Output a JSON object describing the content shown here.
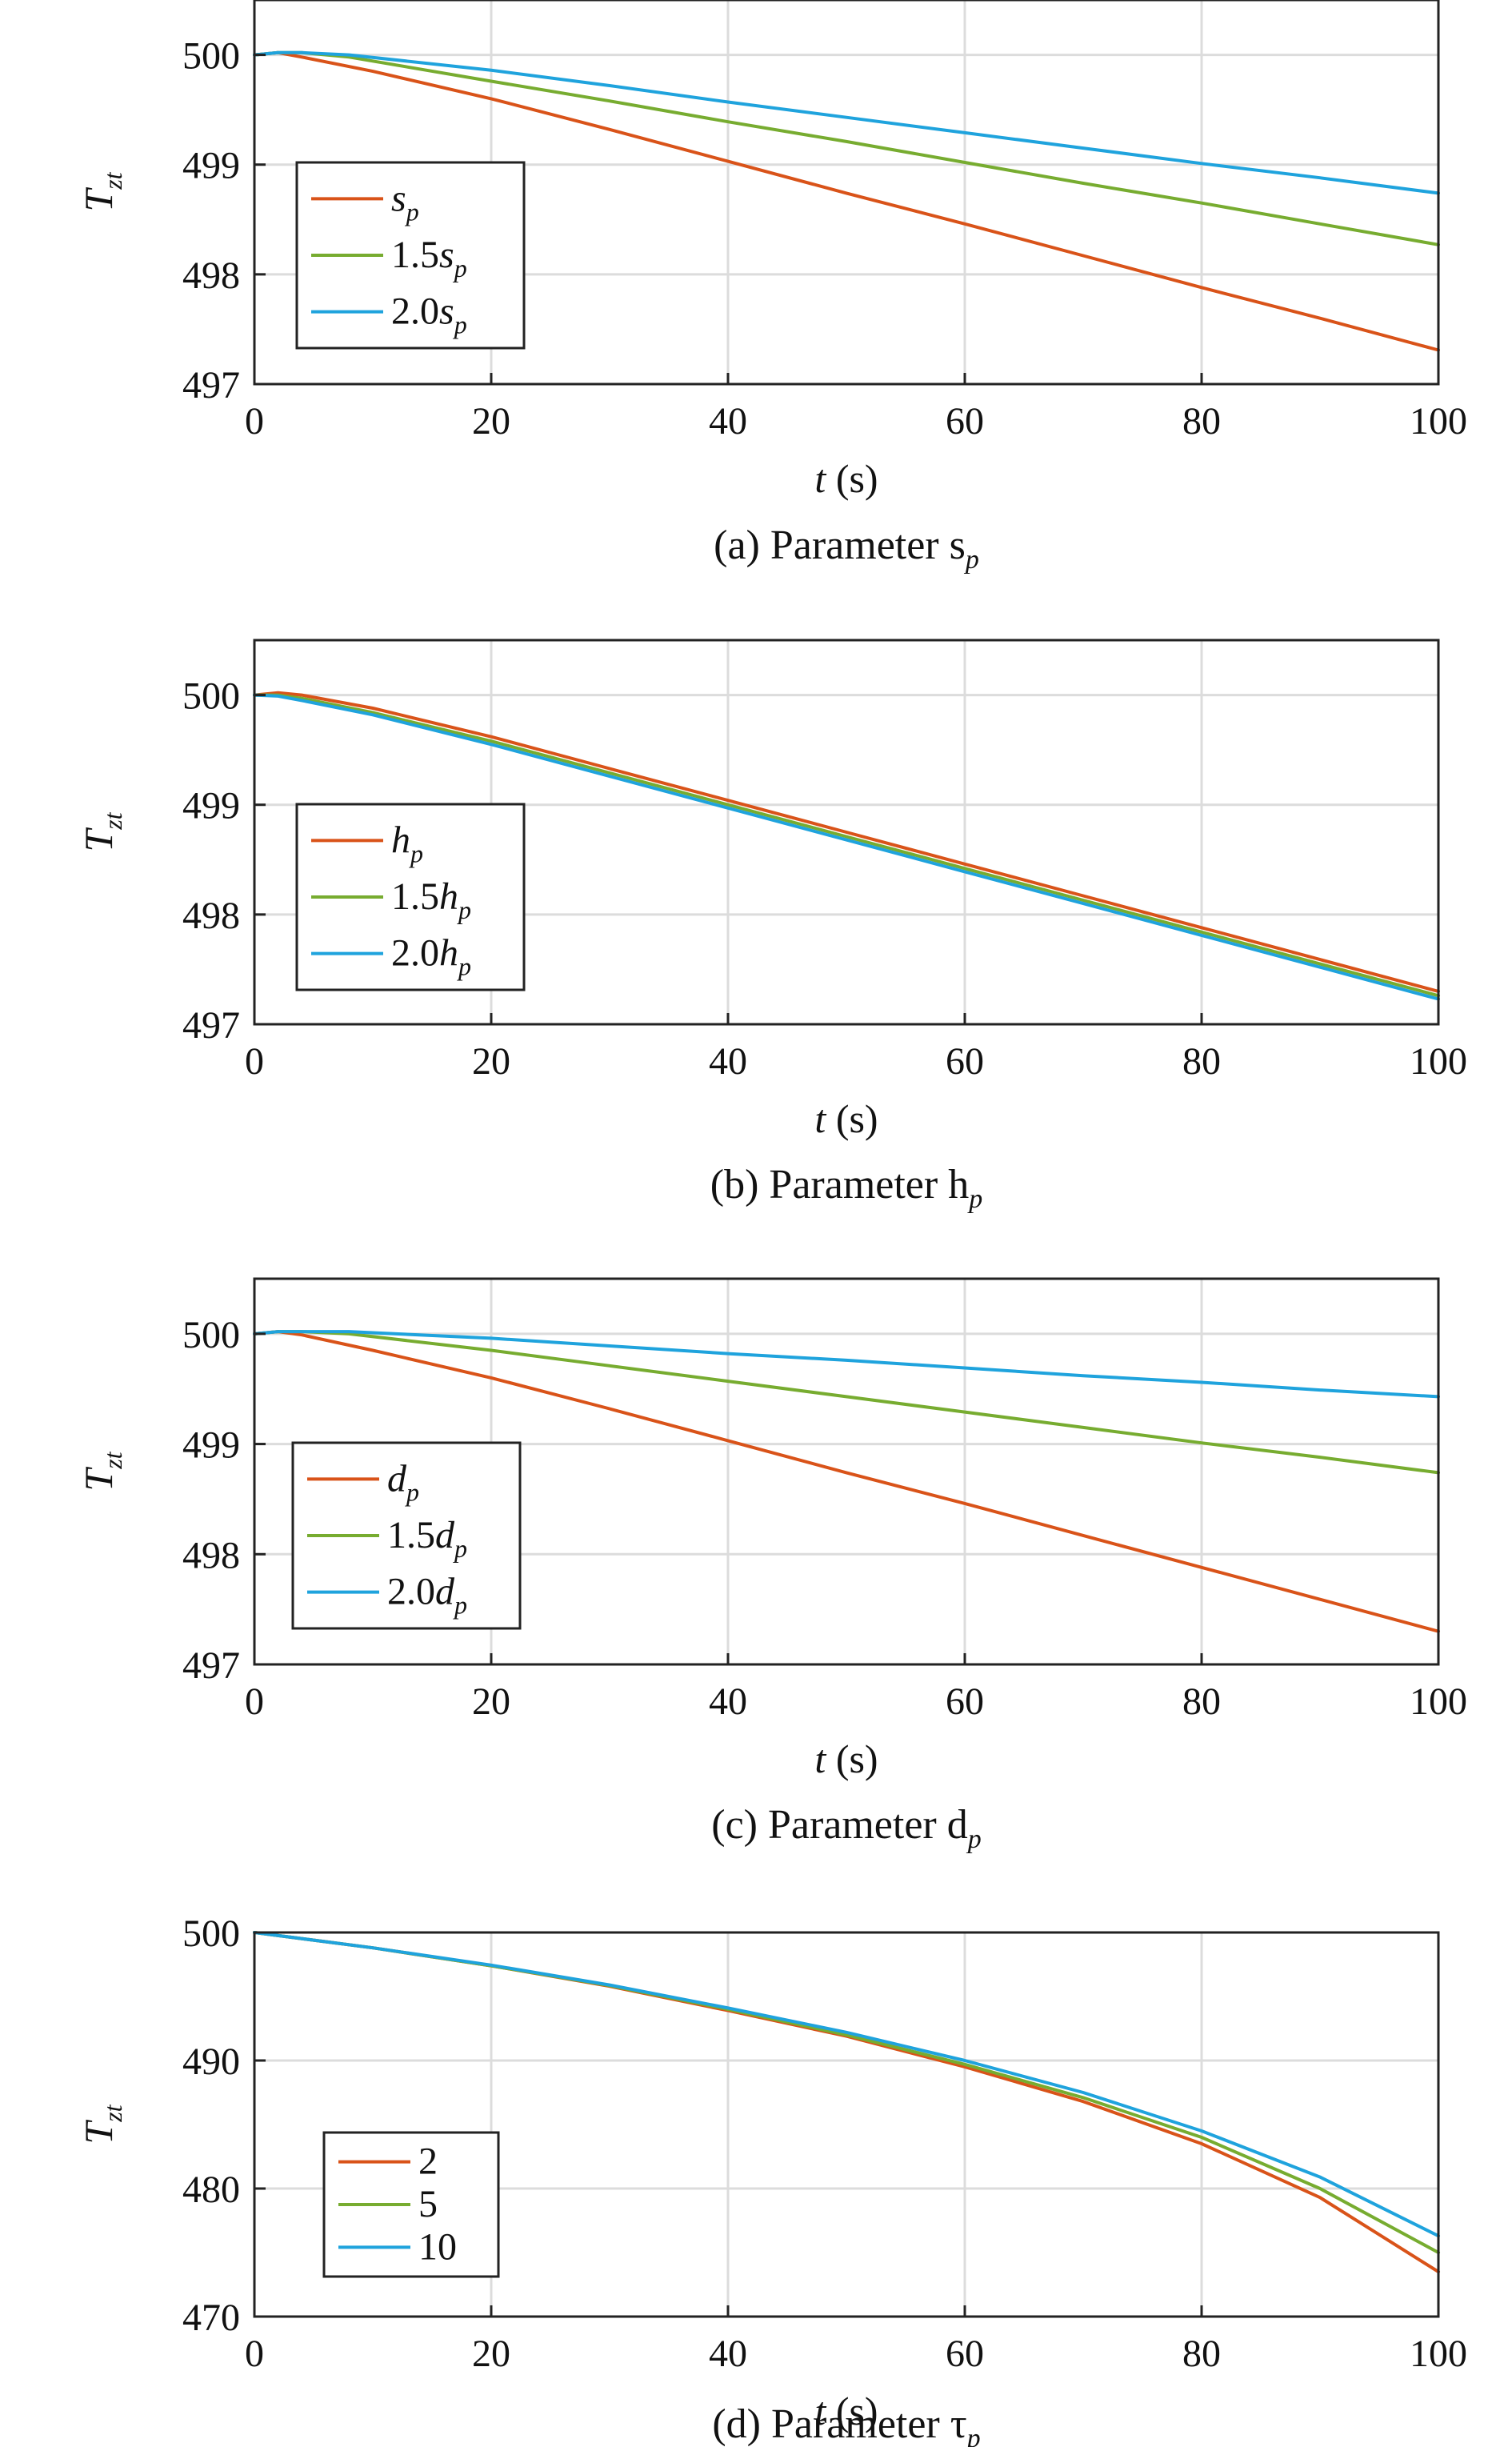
{
  "chart_data": [
    {
      "type": "line",
      "caption": "(a) Parameter s",
      "caption_sub": "p",
      "xlabel_var": "t",
      "xlabel_unit": "(s)",
      "ylabel_main": "T",
      "ylabel_sub": "zt",
      "xlim": [
        0,
        100
      ],
      "ylim": [
        497,
        500.5
      ],
      "xticks": [
        0,
        20,
        40,
        60,
        80,
        100
      ],
      "yticks": [
        497,
        498,
        499,
        500
      ],
      "grid": true,
      "legend_position": "center-left",
      "series": [
        {
          "name": "s",
          "name_prefix": "",
          "name_sub": "p",
          "color": "#D95319",
          "x": [
            0,
            2,
            4,
            10,
            20,
            30,
            40,
            50,
            60,
            70,
            80,
            90,
            100
          ],
          "y": [
            500.0,
            500.02,
            499.98,
            499.85,
            499.6,
            499.32,
            499.03,
            498.74,
            498.46,
            498.17,
            497.88,
            497.6,
            497.31
          ]
        },
        {
          "name": "1.5s",
          "name_prefix": "1.5",
          "name_sub": "p",
          "color": "#77AC30",
          "x": [
            0,
            2,
            4,
            8,
            20,
            30,
            40,
            50,
            60,
            70,
            80,
            90,
            100
          ],
          "y": [
            500.0,
            500.02,
            500.02,
            499.98,
            499.76,
            499.58,
            499.39,
            499.21,
            499.02,
            498.83,
            498.65,
            498.46,
            498.27
          ]
        },
        {
          "name": "2.0s",
          "name_prefix": "2.0",
          "name_sub": "p",
          "color": "#1FA3DD",
          "x": [
            0,
            2,
            4,
            8,
            20,
            30,
            40,
            50,
            60,
            70,
            80,
            90,
            100
          ],
          "y": [
            500.0,
            500.02,
            500.02,
            500.0,
            499.86,
            499.72,
            499.57,
            499.43,
            499.29,
            499.15,
            499.01,
            498.88,
            498.74
          ]
        }
      ]
    },
    {
      "type": "line",
      "caption": "(b) Parameter h",
      "caption_sub": "p",
      "xlabel_var": "t",
      "xlabel_unit": "(s)",
      "ylabel_main": "T",
      "ylabel_sub": "zt",
      "xlim": [
        0,
        100
      ],
      "ylim": [
        497,
        500.5
      ],
      "xticks": [
        0,
        20,
        40,
        60,
        80,
        100
      ],
      "yticks": [
        497,
        498,
        499,
        500
      ],
      "grid": true,
      "legend_position": "center-left",
      "series": [
        {
          "name": "h",
          "name_prefix": "",
          "name_sub": "p",
          "color": "#D95319",
          "x": [
            0,
            2,
            4,
            10,
            20,
            30,
            40,
            50,
            60,
            70,
            80,
            90,
            100
          ],
          "y": [
            500.0,
            500.02,
            500.0,
            499.88,
            499.62,
            499.33,
            499.04,
            498.75,
            498.46,
            498.17,
            497.88,
            497.59,
            497.3
          ]
        },
        {
          "name": "1.5h",
          "name_prefix": "1.5",
          "name_sub": "p",
          "color": "#77AC30",
          "x": [
            0,
            2,
            4,
            10,
            20,
            30,
            40,
            50,
            60,
            70,
            80,
            90,
            100
          ],
          "y": [
            500.0,
            500.0,
            499.97,
            499.84,
            499.58,
            499.29,
            499.0,
            498.71,
            498.42,
            498.13,
            497.84,
            497.55,
            497.26
          ]
        },
        {
          "name": "2.0h",
          "name_prefix": "2.0",
          "name_sub": "p",
          "color": "#1FA3DD",
          "x": [
            0,
            2,
            4,
            10,
            20,
            30,
            40,
            50,
            60,
            70,
            80,
            90,
            100
          ],
          "y": [
            500.0,
            499.99,
            499.95,
            499.82,
            499.55,
            499.26,
            498.97,
            498.68,
            498.39,
            498.1,
            497.81,
            497.52,
            497.23
          ]
        }
      ]
    },
    {
      "type": "line",
      "caption": "(c) Parameter d",
      "caption_sub": "p",
      "xlabel_var": "t",
      "xlabel_unit": "(s)",
      "ylabel_main": "T",
      "ylabel_sub": "zt",
      "xlim": [
        0,
        100
      ],
      "ylim": [
        497,
        500.5
      ],
      "xticks": [
        0,
        20,
        40,
        60,
        80,
        100
      ],
      "yticks": [
        497,
        498,
        499,
        500
      ],
      "grid": true,
      "legend_position": "center-left",
      "series": [
        {
          "name": "d",
          "name_prefix": "",
          "name_sub": "p",
          "color": "#D95319",
          "x": [
            0,
            2,
            4,
            10,
            20,
            30,
            40,
            50,
            60,
            70,
            80,
            90,
            100
          ],
          "y": [
            500.0,
            500.02,
            499.99,
            499.85,
            499.6,
            499.32,
            499.03,
            498.74,
            498.46,
            498.17,
            497.88,
            497.59,
            497.3
          ]
        },
        {
          "name": "1.5d",
          "name_prefix": "1.5",
          "name_sub": "p",
          "color": "#77AC30",
          "x": [
            0,
            2,
            4,
            8,
            20,
            30,
            40,
            50,
            60,
            70,
            80,
            90,
            100
          ],
          "y": [
            500.0,
            500.02,
            500.02,
            500.0,
            499.85,
            499.71,
            499.57,
            499.43,
            499.29,
            499.15,
            499.01,
            498.88,
            498.74
          ]
        },
        {
          "name": "2.0d",
          "name_prefix": "2.0",
          "name_sub": "p",
          "color": "#1FA3DD",
          "x": [
            0,
            2,
            4,
            8,
            20,
            30,
            40,
            50,
            60,
            70,
            80,
            90,
            100
          ],
          "y": [
            500.0,
            500.02,
            500.02,
            500.02,
            499.96,
            499.89,
            499.82,
            499.76,
            499.69,
            499.62,
            499.56,
            499.49,
            499.43
          ]
        }
      ]
    },
    {
      "type": "line",
      "caption": "(d) Parameter τ",
      "caption_sub": "p",
      "xlabel_var": "t",
      "xlabel_unit": "(s)",
      "ylabel_main": "T",
      "ylabel_sub": "zt",
      "xlim": [
        0,
        100
      ],
      "ylim": [
        470,
        500
      ],
      "xticks": [
        0,
        20,
        40,
        60,
        80,
        100
      ],
      "yticks": [
        470,
        480,
        490,
        500
      ],
      "grid": true,
      "legend_position": "lower-left",
      "series": [
        {
          "name": "2",
          "name_prefix": "2",
          "name_sub": "",
          "color": "#D95319",
          "x": [
            0,
            10,
            20,
            30,
            40,
            50,
            60,
            70,
            80,
            90,
            100
          ],
          "y": [
            500.0,
            498.8,
            497.4,
            495.8,
            493.9,
            491.9,
            489.5,
            486.8,
            483.5,
            479.3,
            473.5
          ]
        },
        {
          "name": "5",
          "name_prefix": "5",
          "name_sub": "",
          "color": "#77AC30",
          "x": [
            0,
            10,
            20,
            30,
            40,
            50,
            60,
            70,
            80,
            90,
            100
          ],
          "y": [
            500.0,
            498.8,
            497.4,
            495.85,
            494.0,
            492.0,
            489.7,
            487.1,
            484.0,
            480.0,
            475.0
          ]
        },
        {
          "name": "10",
          "name_prefix": "10",
          "name_sub": "",
          "color": "#1FA3DD",
          "x": [
            0,
            10,
            20,
            30,
            40,
            50,
            60,
            70,
            80,
            90,
            100
          ],
          "y": [
            500.0,
            498.8,
            497.45,
            495.9,
            494.1,
            492.2,
            490.0,
            487.5,
            484.5,
            480.9,
            476.3
          ]
        }
      ]
    }
  ]
}
